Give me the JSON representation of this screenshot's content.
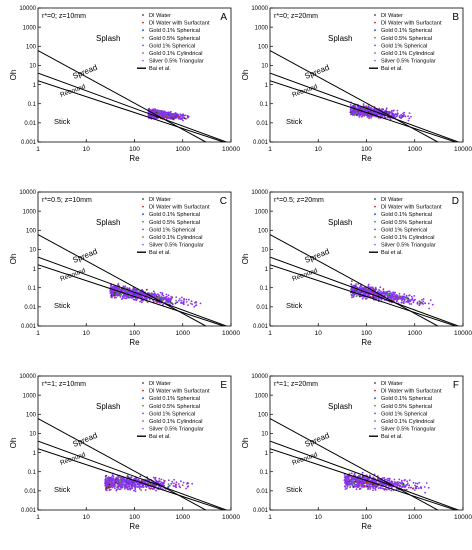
{
  "figure": {
    "colors": {
      "axis": "#000000",
      "regime_line": "#000000",
      "point_cloud": "#8833ee"
    }
  },
  "chart_data": [
    {
      "type": "scatter",
      "panel": "A",
      "title": "r*=0; z=10mm",
      "xlabel": "Re",
      "ylabel": "Oh",
      "xscale": "log",
      "yscale": "log",
      "xlim": [
        1,
        10000
      ],
      "ylim": [
        0.001,
        10000
      ],
      "x_ticks": [
        "1",
        "10",
        "100",
        "1000",
        "10000"
      ],
      "y_ticks": [
        "0.001",
        "0.01",
        "0.1",
        "1",
        "10",
        "100",
        "1000",
        "10000"
      ],
      "regions": [
        "Splash",
        "Spread",
        "Rebound",
        "Stick"
      ],
      "legend": {
        "position": "top-right",
        "entries": [
          {
            "label": "DI Water",
            "color": "#333333"
          },
          {
            "label": "DI Water with Surfactant",
            "color": "#cc2222"
          },
          {
            "label": "Gold 0.1% Spherical",
            "color": "#2244cc"
          },
          {
            "label": "Gold 0.5% Spherical",
            "color": "#22aa44"
          },
          {
            "label": "Gold 1% Spherical",
            "color": "#8833ee"
          },
          {
            "label": "Gold 0.1% Cylindrical",
            "color": "#996633"
          },
          {
            "label": "Silver 0.5% Triangular",
            "color": "#9966ff"
          },
          {
            "label": "Bai et al.",
            "color": "#000000",
            "style": "line"
          }
        ]
      },
      "boundaries": {
        "splash_spread": {
          "x": [
            1,
            3000
          ],
          "y": [
            60,
            0.001
          ]
        },
        "spread_rebound": {
          "x": [
            1,
            8000
          ],
          "y": [
            4,
            0.001
          ]
        },
        "rebound_stick": {
          "x": [
            1,
            7000
          ],
          "y": [
            1.6,
            0.001
          ]
        }
      },
      "cloud": {
        "re_range": [
          50,
          1500
        ],
        "oh_at_re_min": 0.045,
        "oh_at_re_max": 0.018,
        "spread": 0.28
      }
    },
    {
      "type": "scatter",
      "panel": "B",
      "title": "r*=0; z=20mm",
      "xlabel": "Re",
      "ylabel": "Oh",
      "xscale": "log",
      "yscale": "log",
      "xlim": [
        1,
        10000
      ],
      "ylim": [
        0.001,
        10000
      ],
      "x_ticks": [
        "1",
        "10",
        "100",
        "1000",
        "10000"
      ],
      "y_ticks": [
        "0.001",
        "0.01",
        "0.1",
        "1",
        "10",
        "100",
        "1000",
        "10000"
      ],
      "regions": [
        "Splash",
        "Spread",
        "Rebound",
        "Stick"
      ],
      "legend": {
        "position": "top-right",
        "entries": [
          {
            "label": "DI Water",
            "color": "#333333"
          },
          {
            "label": "DI Water with Surfactant",
            "color": "#cc2222"
          },
          {
            "label": "Gold 0.1% Spherical",
            "color": "#2244cc"
          },
          {
            "label": "Gold 0.5% Spherical",
            "color": "#22aa44"
          },
          {
            "label": "Gold 1% Spherical",
            "color": "#8833ee"
          },
          {
            "label": "Gold 0.1% Cylindrical",
            "color": "#996633"
          },
          {
            "label": "Silver 0.5% Triangular",
            "color": "#9966ff"
          },
          {
            "label": "Bai et al.",
            "color": "#000000",
            "style": "line"
          }
        ]
      },
      "boundaries": {
        "splash_spread": {
          "x": [
            1,
            3000
          ],
          "y": [
            60,
            0.001
          ]
        },
        "spread_rebound": {
          "x": [
            1,
            8000
          ],
          "y": [
            4,
            0.001
          ]
        },
        "rebound_stick": {
          "x": [
            1,
            7000
          ],
          "y": [
            1.6,
            0.001
          ]
        }
      },
      "cloud": {
        "re_range": [
          6,
          1000
        ],
        "oh_at_re_min": 0.09,
        "oh_at_re_max": 0.02,
        "spread": 0.35
      }
    },
    {
      "type": "scatter",
      "panel": "C",
      "title": "r*=0.5; z=10mm",
      "xlabel": "Re",
      "ylabel": "Oh",
      "xscale": "log",
      "yscale": "log",
      "xlim": [
        1,
        10000
      ],
      "ylim": [
        0.001,
        10000
      ],
      "x_ticks": [
        "1",
        "10",
        "100",
        "1000",
        "10000"
      ],
      "y_ticks": [
        "0.001",
        "0.01",
        "0.1",
        "1",
        "10",
        "100",
        "1000",
        "10000"
      ],
      "regions": [
        "Splash",
        "Spread",
        "Rebound",
        "Stick"
      ],
      "legend": {
        "position": "top-right",
        "entries": [
          {
            "label": "DI Water",
            "color": "#333333"
          },
          {
            "label": "DI Water with Surfactant",
            "color": "#cc2222"
          },
          {
            "label": "Gold 0.1% Spherical",
            "color": "#2244cc"
          },
          {
            "label": "Gold 0.5% Spherical",
            "color": "#22aa44"
          },
          {
            "label": "Gold 1% Spherical",
            "color": "#8833ee"
          },
          {
            "label": "Gold 0.1% Cylindrical",
            "color": "#996633"
          },
          {
            "label": "Silver 0.5% Triangular",
            "color": "#9966ff"
          },
          {
            "label": "Bai et al.",
            "color": "#000000",
            "style": "line"
          }
        ]
      },
      "boundaries": {
        "splash_spread": {
          "x": [
            1,
            3000
          ],
          "y": [
            60,
            0.001
          ]
        },
        "spread_rebound": {
          "x": [
            1,
            8000
          ],
          "y": [
            4,
            0.001
          ]
        },
        "rebound_stick": {
          "x": [
            1,
            7000
          ],
          "y": [
            1.6,
            0.001
          ]
        }
      },
      "cloud": {
        "re_range": [
          1.5,
          3000
        ],
        "oh_at_re_min": 0.25,
        "oh_at_re_max": 0.012,
        "spread": 0.4
      }
    },
    {
      "type": "scatter",
      "panel": "D",
      "title": "r*=0.5; z=20mm",
      "xlabel": "Re",
      "ylabel": "Oh",
      "xscale": "log",
      "yscale": "log",
      "xlim": [
        1,
        10000
      ],
      "ylim": [
        0.001,
        10000
      ],
      "x_ticks": [
        "1",
        "10",
        "100",
        "1000",
        "10000"
      ],
      "y_ticks": [
        "0.001",
        "0.01",
        "0.1",
        "1",
        "10",
        "100",
        "1000",
        "10000"
      ],
      "regions": [
        "Splash",
        "Spread",
        "Rebound",
        "Stick"
      ],
      "legend": {
        "position": "top-right",
        "entries": [
          {
            "label": "DI Water",
            "color": "#333333"
          },
          {
            "label": "DI Water with Surfactant",
            "color": "#cc2222"
          },
          {
            "label": "Gold 0.1% Spherical",
            "color": "#2244cc"
          },
          {
            "label": "Gold 0.5% Spherical",
            "color": "#22aa44"
          },
          {
            "label": "Gold 1% Spherical",
            "color": "#8833ee"
          },
          {
            "label": "Gold 0.1% Cylindrical",
            "color": "#996633"
          },
          {
            "label": "Silver 0.5% Triangular",
            "color": "#9966ff"
          },
          {
            "label": "Bai et al.",
            "color": "#000000",
            "style": "line"
          }
        ]
      },
      "boundaries": {
        "splash_spread": {
          "x": [
            1,
            3000
          ],
          "y": [
            60,
            0.001
          ]
        },
        "spread_rebound": {
          "x": [
            1,
            8000
          ],
          "y": [
            4,
            0.001
          ]
        },
        "rebound_stick": {
          "x": [
            1,
            7000
          ],
          "y": [
            1.6,
            0.001
          ]
        }
      },
      "cloud": {
        "re_range": [
          3,
          3000
        ],
        "oh_at_re_min": 0.3,
        "oh_at_re_max": 0.012,
        "spread": 0.4
      }
    },
    {
      "type": "scatter",
      "panel": "E",
      "title": "r*=1; z=10mm",
      "xlabel": "Re",
      "ylabel": "Oh",
      "xscale": "log",
      "yscale": "log",
      "xlim": [
        1,
        10000
      ],
      "ylim": [
        0.001,
        10000
      ],
      "x_ticks": [
        "1",
        "10",
        "100",
        "1000",
        "10000"
      ],
      "y_ticks": [
        "0.001",
        "0.01",
        "0.1",
        "1",
        "10",
        "100",
        "1000",
        "10000"
      ],
      "regions": [
        "Splash",
        "Spread",
        "Rebound",
        "Stick"
      ],
      "legend": {
        "position": "top-right",
        "entries": [
          {
            "label": "DI Water",
            "color": "#333333"
          },
          {
            "label": "DI Water with Surfactant",
            "color": "#cc2222"
          },
          {
            "label": "Gold 0.1% Spherical",
            "color": "#2244cc"
          },
          {
            "label": "Gold 0.5% Spherical",
            "color": "#22aa44"
          },
          {
            "label": "Gold 1% Spherical",
            "color": "#8833ee"
          },
          {
            "label": "Gold 0.1% Cylindrical",
            "color": "#996633"
          },
          {
            "label": "Silver 0.5% Triangular",
            "color": "#9966ff"
          },
          {
            "label": "Bai et al.",
            "color": "#000000",
            "style": "line"
          }
        ]
      },
      "boundaries": {
        "splash_spread": {
          "x": [
            1,
            3000
          ],
          "y": [
            60,
            0.001
          ]
        },
        "spread_rebound": {
          "x": [
            1,
            8000
          ],
          "y": [
            4,
            0.001
          ]
        },
        "rebound_stick": {
          "x": [
            1,
            7000
          ],
          "y": [
            1.6,
            0.001
          ]
        }
      },
      "cloud": {
        "re_range": [
          1.3,
          2000
        ],
        "oh_at_re_min": 0.035,
        "oh_at_re_max": 0.02,
        "spread": 0.45
      }
    },
    {
      "type": "scatter",
      "panel": "F",
      "title": "r*=1; z=20mm",
      "xlabel": "Re",
      "ylabel": "Oh",
      "xscale": "log",
      "yscale": "log",
      "xlim": [
        1,
        10000
      ],
      "ylim": [
        0.001,
        10000
      ],
      "x_ticks": [
        "1",
        "10",
        "100",
        "1000",
        "10000"
      ],
      "y_ticks": [
        "0.001",
        "0.01",
        "0.1",
        "1",
        "10",
        "100",
        "1000",
        "10000"
      ],
      "regions": [
        "Splash",
        "Spread",
        "Rebound",
        "Stick"
      ],
      "legend": {
        "position": "top-right",
        "entries": [
          {
            "label": "DI Water",
            "color": "#333333"
          },
          {
            "label": "DI Water with Surfactant",
            "color": "#cc2222"
          },
          {
            "label": "Gold 0.1% Spherical",
            "color": "#2244cc"
          },
          {
            "label": "Gold 0.5% Spherical",
            "color": "#22aa44"
          },
          {
            "label": "Gold 1% Spherical",
            "color": "#8833ee"
          },
          {
            "label": "Gold 0.1% Cylindrical",
            "color": "#996633"
          },
          {
            "label": "Silver 0.5% Triangular",
            "color": "#9966ff"
          },
          {
            "label": "Bai et al.",
            "color": "#000000",
            "style": "line"
          }
        ]
      },
      "boundaries": {
        "splash_spread": {
          "x": [
            1,
            3000
          ],
          "y": [
            60,
            0.001
          ]
        },
        "spread_rebound": {
          "x": [
            1,
            8000
          ],
          "y": [
            4,
            0.001
          ]
        },
        "rebound_stick": {
          "x": [
            1,
            7000
          ],
          "y": [
            1.6,
            0.001
          ]
        }
      },
      "cloud": {
        "re_range": [
          2,
          2500
        ],
        "oh_at_re_min": 0.07,
        "oh_at_re_max": 0.014,
        "spread": 0.45
      }
    }
  ]
}
